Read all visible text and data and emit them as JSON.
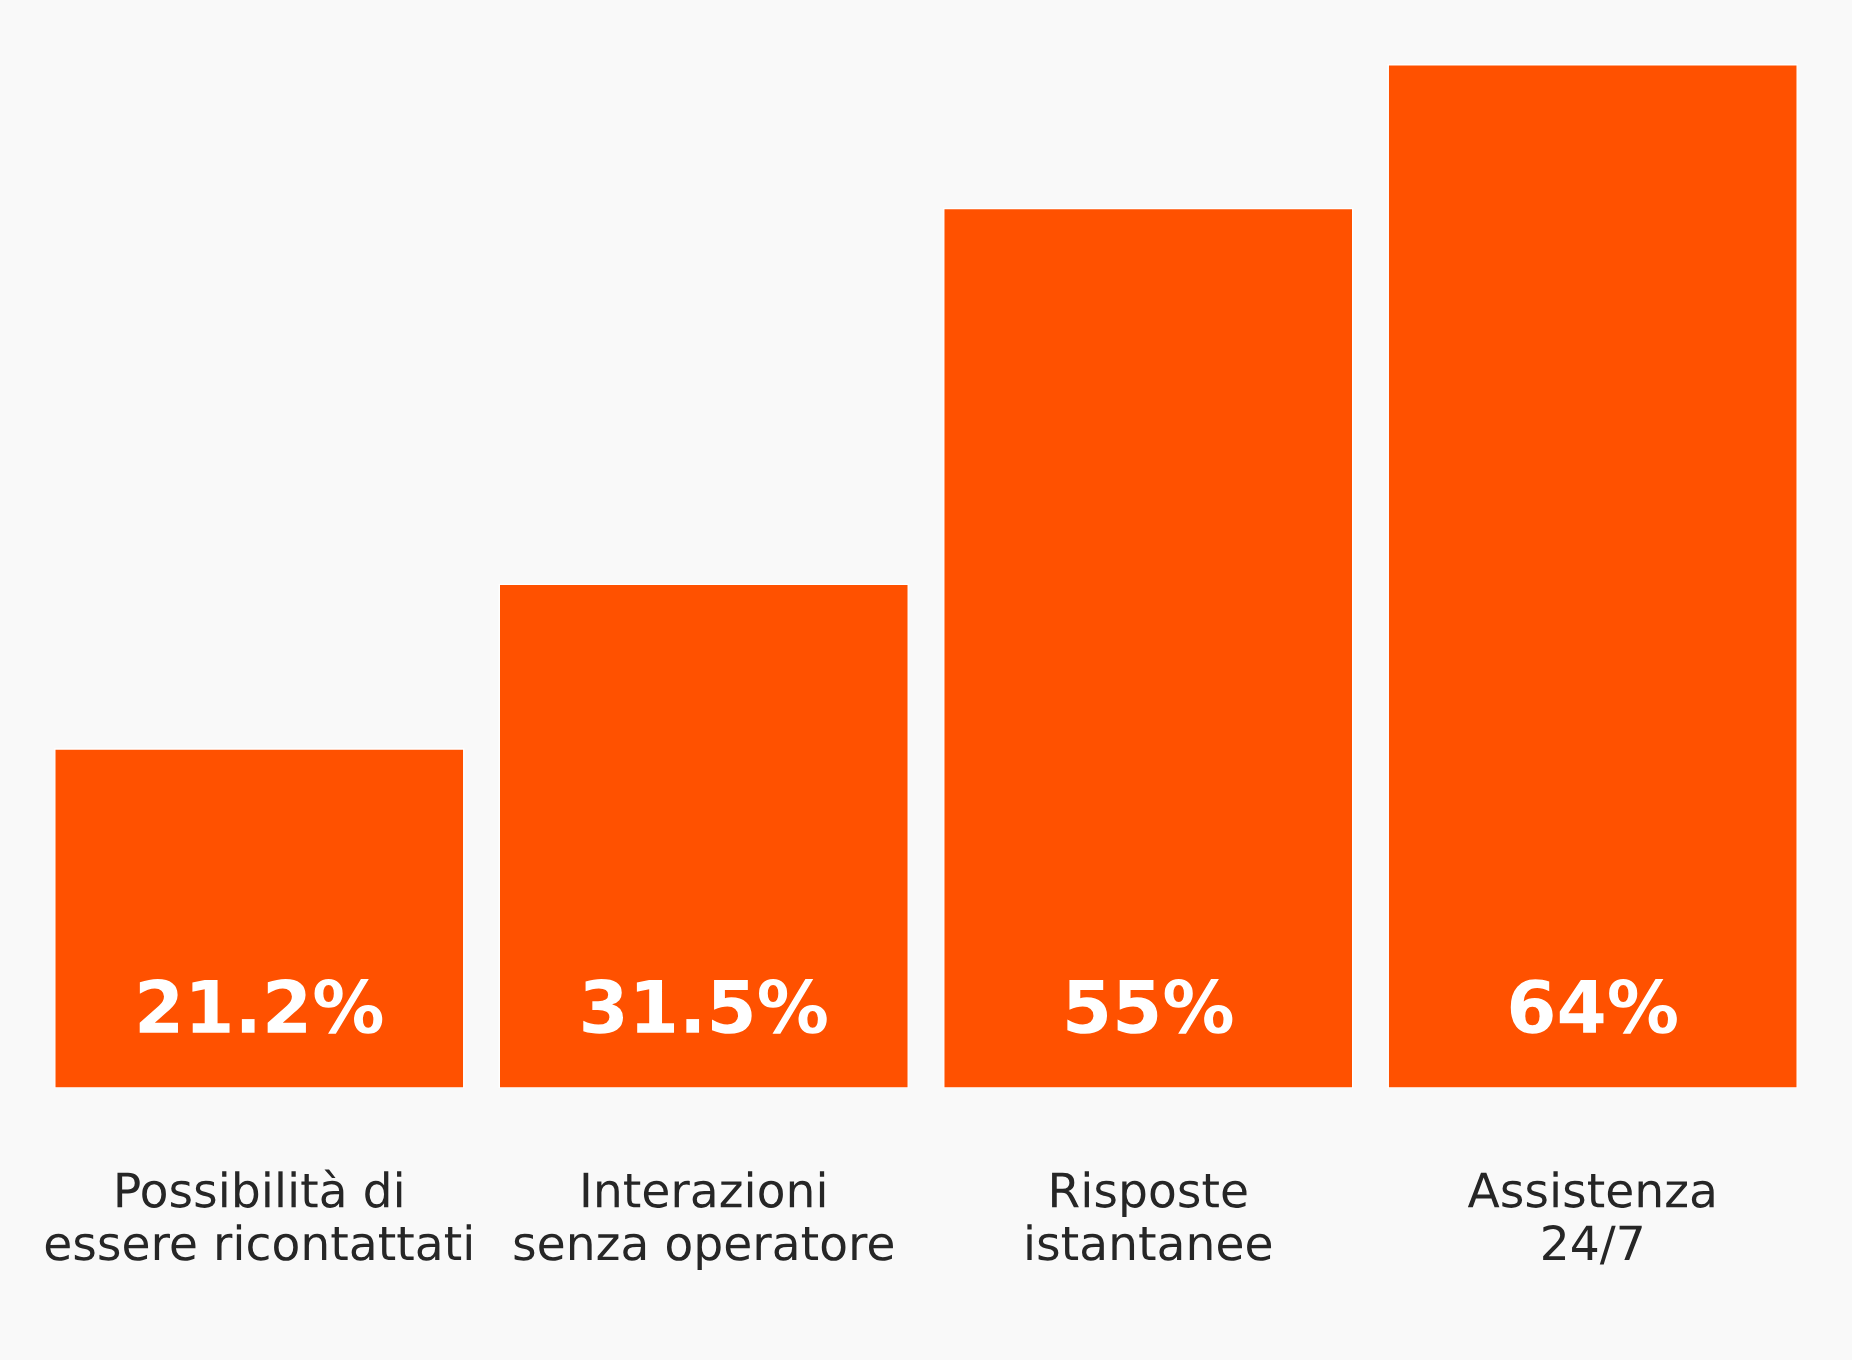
{
  "chart_data": {
    "type": "bar",
    "categories": [
      "Possibilità di\nessere ricontattati",
      "Interazioni\nsenza operatore",
      "Risposte\nistantanee",
      "Assistenza\n24/7"
    ],
    "values": [
      21.2,
      31.5,
      55,
      64
    ],
    "value_labels": [
      "21.2%",
      "31.5%",
      "55%",
      "64%"
    ],
    "color": "#ff5100",
    "grid": false,
    "legend": false
  }
}
